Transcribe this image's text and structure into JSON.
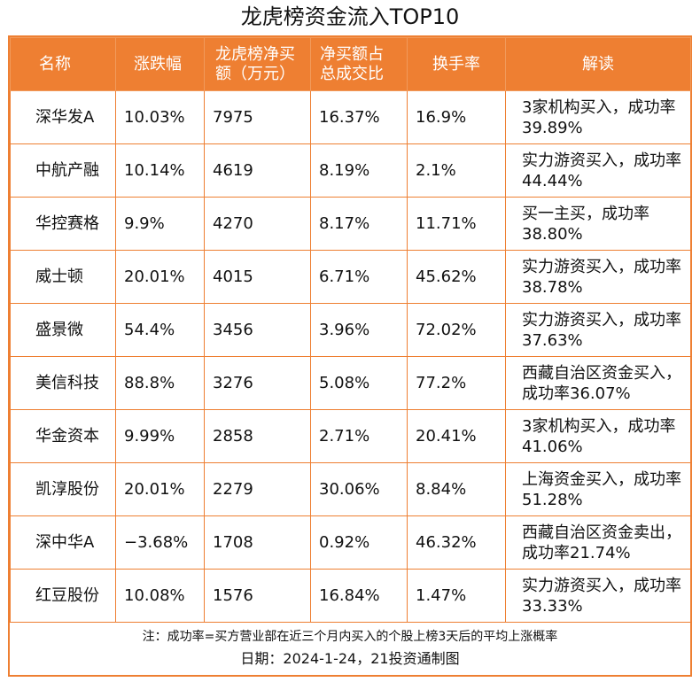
{
  "title": "龙虎榜资金流入TOP10",
  "headers": {
    "name": "名称",
    "change": "涨跌幅",
    "net_buy_1": "龙虎榜净买",
    "net_buy_2": "额（万元）",
    "ratio_1": "净买额占",
    "ratio_2": "总成交比",
    "turnover": "换手率",
    "interpretation": "解读"
  },
  "rows": [
    {
      "name": "深华发A",
      "change": "10.03%",
      "net_buy": "7975",
      "ratio": "16.37%",
      "turnover": "16.9%",
      "interpretation": "3家机构买入，成功率39.89%"
    },
    {
      "name": "中航产融",
      "change": "10.14%",
      "net_buy": "4619",
      "ratio": "8.19%",
      "turnover": "2.1%",
      "interpretation": "实力游资买入，成功率44.44%"
    },
    {
      "name": "华控赛格",
      "change": "9.9%",
      "net_buy": "4270",
      "ratio": "8.17%",
      "turnover": "11.71%",
      "interpretation": "买一主买，成功率38.80%"
    },
    {
      "name": "威士顿",
      "change": "20.01%",
      "net_buy": "4015",
      "ratio": "6.71%",
      "turnover": "45.62%",
      "interpretation": "实力游资买入，成功率38.78%"
    },
    {
      "name": "盛景微",
      "change": "54.4%",
      "net_buy": "3456",
      "ratio": "3.96%",
      "turnover": "72.02%",
      "interpretation": "实力游资买入，成功率37.63%"
    },
    {
      "name": "美信科技",
      "change": "88.8%",
      "net_buy": "3276",
      "ratio": "5.08%",
      "turnover": "77.2%",
      "interpretation": "西藏自治区资金买入，成功率36.07%"
    },
    {
      "name": "华金资本",
      "change": "9.99%",
      "net_buy": "2858",
      "ratio": "2.71%",
      "turnover": "20.41%",
      "interpretation": "3家机构买入，成功率41.06%"
    },
    {
      "name": "凯淳股份",
      "change": "20.01%",
      "net_buy": "2279",
      "ratio": "30.06%",
      "turnover": "8.84%",
      "interpretation": "上海资金买入，成功率51.28%"
    },
    {
      "name": "深中华A",
      "change": "−3.68%",
      "net_buy": "1708",
      "ratio": "0.92%",
      "turnover": "46.32%",
      "interpretation": "西藏自治区资金卖出，成功率21.74%"
    },
    {
      "name": "红豆股份",
      "change": "10.08%",
      "net_buy": "1576",
      "ratio": "16.84%",
      "turnover": "1.47%",
      "interpretation": "实力游资买入，成功率33.33%"
    }
  ],
  "footnote": "注：成功率=买方营业部在近三个月内买入的个股上榜3天后的平均上涨概率",
  "source": "日期：2024-1-24，21投资通制图",
  "colors": {
    "accent": "#ee7f32",
    "header_text": "#ffffff"
  }
}
